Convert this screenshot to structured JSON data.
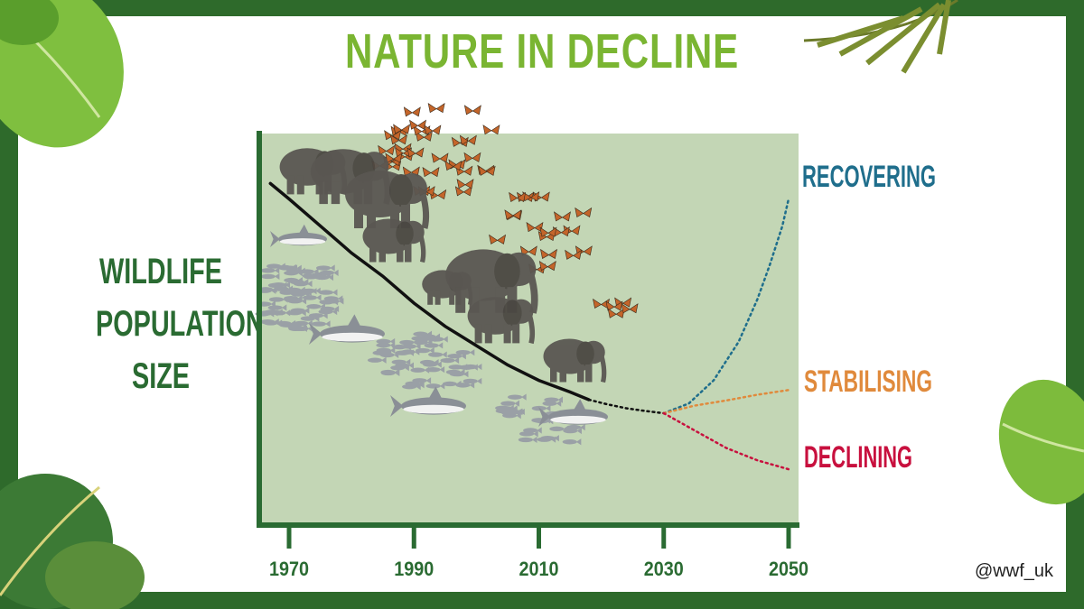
{
  "title": "NATURE IN DECLINE",
  "handle": "@wwf_uk",
  "colors": {
    "frame": "#2e6a2b",
    "title": "#7ab532",
    "plot_bg": "#c3d6b5",
    "axis": "#2a6b32",
    "recovering": "#1f6e8c",
    "stabilising": "#e08a3c",
    "declining": "#c8103e",
    "trend": "#111111",
    "elephant": "#5a5752",
    "butterfly": "#c4652a",
    "fish": "#9aa0a6"
  },
  "chart_data": {
    "type": "line",
    "title": "NATURE IN DECLINE",
    "xlabel": "",
    "ylabel": "WILDLIFE POPULATION SIZE",
    "xlim": [
      1968,
      2051
    ],
    "ylim": [
      0,
      100
    ],
    "x_ticks": [
      "1970",
      "1990",
      "2010",
      "2030",
      "2050"
    ],
    "y_ticks": [],
    "grid": false,
    "series": [
      {
        "name": "",
        "style": "solid",
        "color": "#111111",
        "x": [
          1967,
          1970,
          1975,
          1980,
          1985,
          1990,
          1995,
          2000,
          2005,
          2010,
          2015,
          2018
        ],
        "y": [
          88,
          84,
          77,
          70,
          64,
          57,
          51,
          46,
          41,
          37,
          34,
          32
        ]
      },
      {
        "name": "",
        "style": "dotted",
        "color": "#111111",
        "x": [
          2018,
          2021,
          2024,
          2027,
          2030
        ],
        "y": [
          32,
          30.8,
          29.8,
          29.1,
          28.5
        ]
      },
      {
        "name": "RECOVERING",
        "style": "dotted",
        "color": "#1f6e8c",
        "x": [
          2030,
          2034,
          2038,
          2042,
          2045,
          2047,
          2049,
          2050
        ],
        "y": [
          28.5,
          31,
          37,
          47,
          58,
          67,
          77,
          84
        ]
      },
      {
        "name": "STABILISING",
        "style": "dotted",
        "color": "#e08a3c",
        "x": [
          2030,
          2035,
          2040,
          2045,
          2050
        ],
        "y": [
          28.5,
          30.5,
          31.8,
          33.3,
          34.5
        ]
      },
      {
        "name": "DECLINING",
        "style": "dotted",
        "color": "#c8103e",
        "x": [
          2030,
          2035,
          2040,
          2045,
          2050
        ],
        "y": [
          28.5,
          24,
          19.5,
          16.3,
          14
        ]
      }
    ]
  }
}
